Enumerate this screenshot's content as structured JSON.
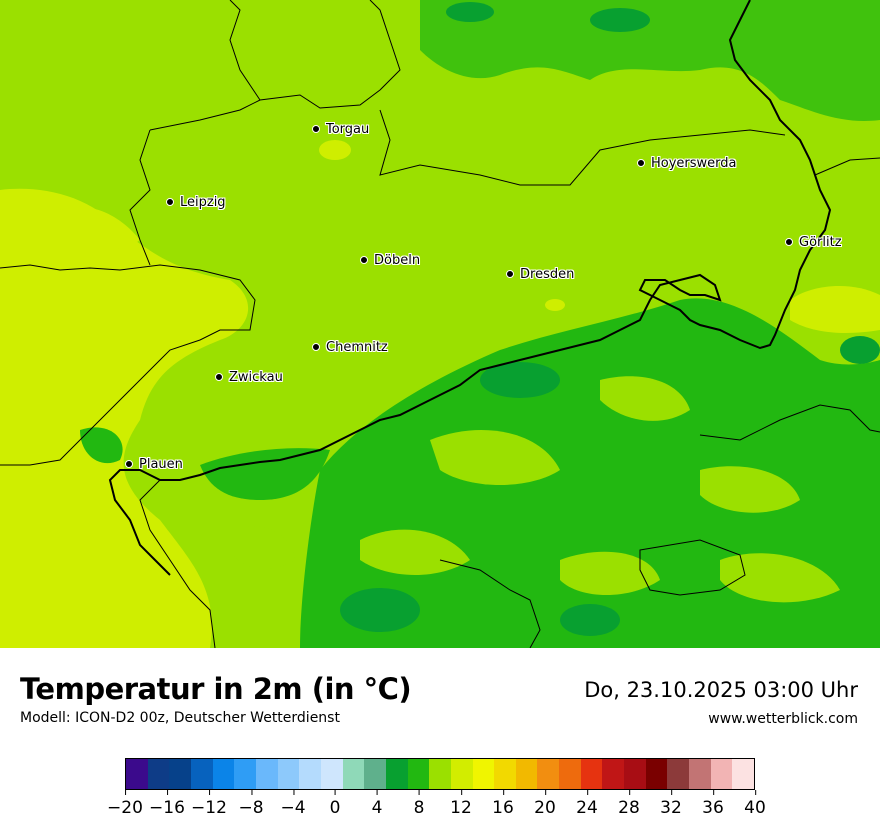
{
  "map": {
    "cities": [
      {
        "name": "Torgau"
      },
      {
        "name": "Hoyerswerda"
      },
      {
        "name": "Leipzig"
      },
      {
        "name": "Görlitz"
      },
      {
        "name": "Döbeln"
      },
      {
        "name": "Dresden"
      },
      {
        "name": "Chemnitz"
      },
      {
        "name": "Zwickau"
      },
      {
        "name": "Plauen"
      }
    ]
  },
  "footer": {
    "title": "Temperatur in 2m (in °C)",
    "model": "Modell: ICON-D2 00z, Deutscher Wetterdienst",
    "datetime": "Do, 23.10.2025 03:00 Uhr",
    "website": "www.wetterblick.com"
  },
  "legend": {
    "ticks": [
      "−20",
      "−16",
      "−12",
      "−8",
      "−4",
      "0",
      "4",
      "8",
      "12",
      "16",
      "20",
      "24",
      "28",
      "32",
      "36",
      "40"
    ],
    "colors": [
      "#3b0a8c",
      "#0e3c87",
      "#06418a",
      "#0762be",
      "#0b84e8",
      "#2f9df5",
      "#6ab8fb",
      "#8dc9fb",
      "#b4dbfd",
      "#cfe6fd",
      "#8fd9b8",
      "#5fb08c",
      "#08a030",
      "#22b811",
      "#9be000",
      "#d2ed00",
      "#f0f500",
      "#f2d900",
      "#f2b900",
      "#f28e10",
      "#ee6b0d",
      "#e63310",
      "#c01616",
      "#a80d14",
      "#7a0000",
      "#8c3a3a",
      "#c27474",
      "#f2b4b4",
      "#fce2e2"
    ]
  }
}
